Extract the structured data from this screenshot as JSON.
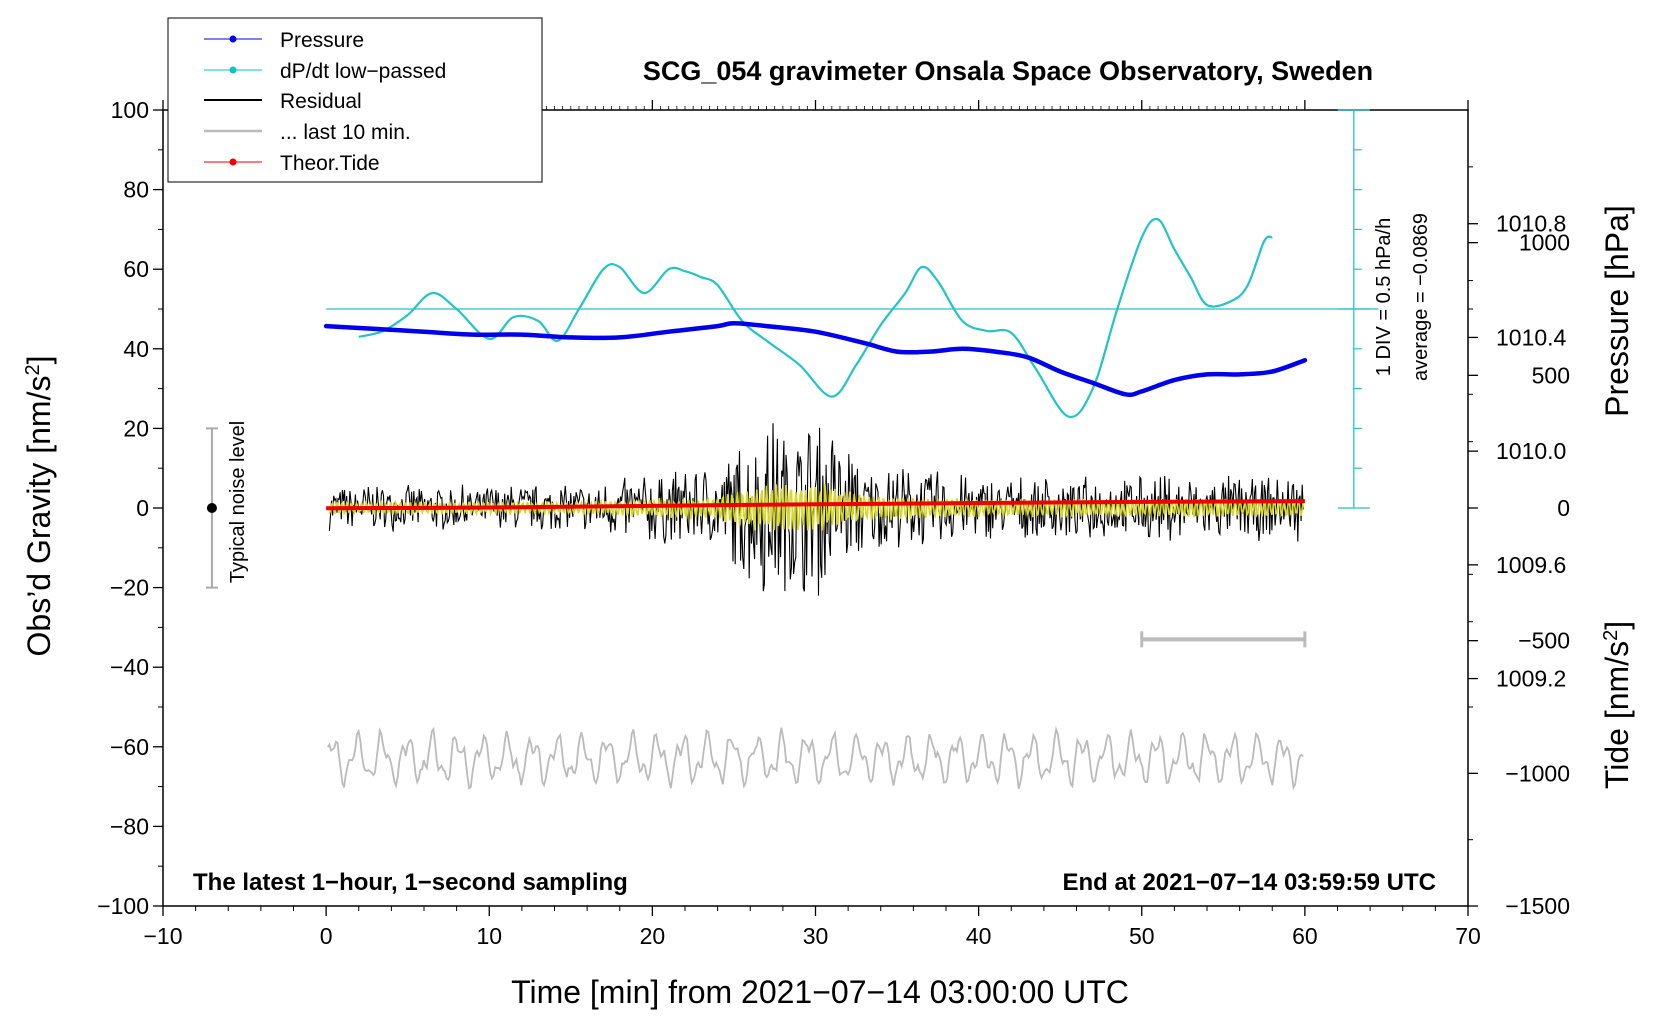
{
  "chart_data": {
    "type": "line",
    "title": "SCG_054 gravimeter Onsala Space Observatory, Sweden",
    "xlabel": "Time [min] from 2021−07−14 03:00:00 UTC",
    "ylabel_left_main": "Obs’d Gravity [nm/s",
    "ylabel_left_sup": "2",
    "ylabel_left_end": "]",
    "ylabel_right_pressure": "Pressure [hPa]",
    "ylabel_right_tide_main": "Tide [nm/s",
    "ylabel_right_tide_sup": "2",
    "ylabel_right_tide_end": "]",
    "xlim": [
      -10,
      70
    ],
    "ylim": [
      -100,
      100
    ],
    "pressure_lim": [
      1008.4,
      1011.2
    ],
    "tide_lim": [
      -1500,
      1500
    ],
    "x_ticks": [
      "−10",
      "0",
      "10",
      "20",
      "30",
      "40",
      "50",
      "60",
      "70"
    ],
    "x_tick_values": [
      -10,
      0,
      10,
      20,
      30,
      40,
      50,
      60,
      70
    ],
    "y_ticks": [
      "100",
      "80",
      "60",
      "40",
      "20",
      "0",
      "−20",
      "−40",
      "−60",
      "−80",
      "−100"
    ],
    "y_tick_values": [
      100,
      80,
      60,
      40,
      20,
      0,
      -20,
      -40,
      -60,
      -80,
      -100
    ],
    "pressure_ticks": [
      "1010.8",
      "1010.4",
      "1010.0",
      "1009.6",
      "1009.2"
    ],
    "pressure_tick_values": [
      1010.8,
      1010.4,
      1010.0,
      1009.6,
      1009.2
    ],
    "tide_ticks": [
      "1000",
      "500",
      "0",
      "−500",
      "−1000",
      "−1500"
    ],
    "tide_tick_values": [
      1000,
      500,
      0,
      -500,
      -1000,
      -1500
    ],
    "legend": [
      {
        "label": "Pressure",
        "color": "#0000ee",
        "marker": true
      },
      {
        "label": "dP/dt low−passed",
        "color": "#00c8c8",
        "marker": true
      },
      {
        "label": "Residual",
        "color": "#000000",
        "marker": false
      },
      {
        "label": "... last 10 min.",
        "color": "#bbbbbb",
        "marker": false
      },
      {
        "label": "Theor.Tide",
        "color": "#ee0000",
        "marker": true
      }
    ],
    "colors": {
      "pressure": "#0000ee",
      "dpdt": "#22c4c4",
      "residual": "#000000",
      "residual_filtered": "#d8d820",
      "last10": "#bbbbbb",
      "tide": "#ee0000",
      "noise": "#aaaaaa"
    },
    "annotations": {
      "div_scale": "1 DIV = 0.5 hPa/h",
      "average": "average = −0.0869",
      "noise_level": "Typical noise level",
      "left_note": "The latest 1−hour, 1−second sampling",
      "right_note": "End at 2021−07−14 03:59:59 UTC"
    },
    "noise_bar": {
      "x": -7,
      "y_min": -20,
      "y_max": 20
    },
    "dpdt_baseline_y": 50,
    "dpdt_scale_x": 63,
    "dpdt_scale_y": [
      0,
      100
    ],
    "last10_bar": {
      "x_start": 50,
      "x_end": 60,
      "y": -33
    },
    "series": [
      {
        "name": "Pressure",
        "axis": "pressure",
        "x": [
          0,
          3,
          6,
          9,
          12,
          15,
          18,
          21,
          24,
          25,
          27,
          30,
          33,
          35,
          37,
          39,
          41,
          43,
          45,
          47,
          49,
          50,
          52,
          54,
          56,
          58,
          60
        ],
        "values": [
          1010.44,
          1010.43,
          1010.42,
          1010.41,
          1010.41,
          1010.4,
          1010.4,
          1010.42,
          1010.44,
          1010.45,
          1010.44,
          1010.42,
          1010.38,
          1010.35,
          1010.35,
          1010.36,
          1010.35,
          1010.33,
          1010.28,
          1010.24,
          1010.2,
          1010.21,
          1010.25,
          1010.27,
          1010.27,
          1010.28,
          1010.32
        ]
      },
      {
        "name": "dP/dt low-passed",
        "axis": "gravity",
        "x": [
          2,
          3.5,
          5,
          6.5,
          8,
          10,
          11.5,
          13,
          14.2,
          15.5,
          17,
          18,
          19.5,
          21,
          22,
          23,
          24,
          25.5,
          27,
          29,
          31,
          32.5,
          34,
          35.5,
          36.5,
          37.5,
          39,
          40.5,
          42,
          43.5,
          45.5,
          47,
          48.5,
          50,
          51,
          52,
          53,
          54,
          55.5,
          56.5,
          57.5,
          58
        ],
        "values": [
          43,
          44.5,
          48.5,
          54,
          50,
          42.5,
          48,
          47,
          42,
          50,
          60,
          60.5,
          54,
          60,
          59.5,
          58,
          56,
          47,
          42,
          36,
          28,
          36,
          46,
          54,
          60.5,
          57,
          47,
          44.5,
          44,
          35,
          23,
          30,
          50,
          68,
          72.5,
          65,
          58,
          51,
          52,
          56,
          67,
          68
        ]
      },
      {
        "name": "Theor.Tide",
        "axis": "tide",
        "x": [
          0,
          10,
          20,
          30,
          40,
          50,
          60
        ],
        "values": [
          -1,
          2,
          8,
          14,
          19,
          23,
          26
        ]
      }
    ]
  }
}
